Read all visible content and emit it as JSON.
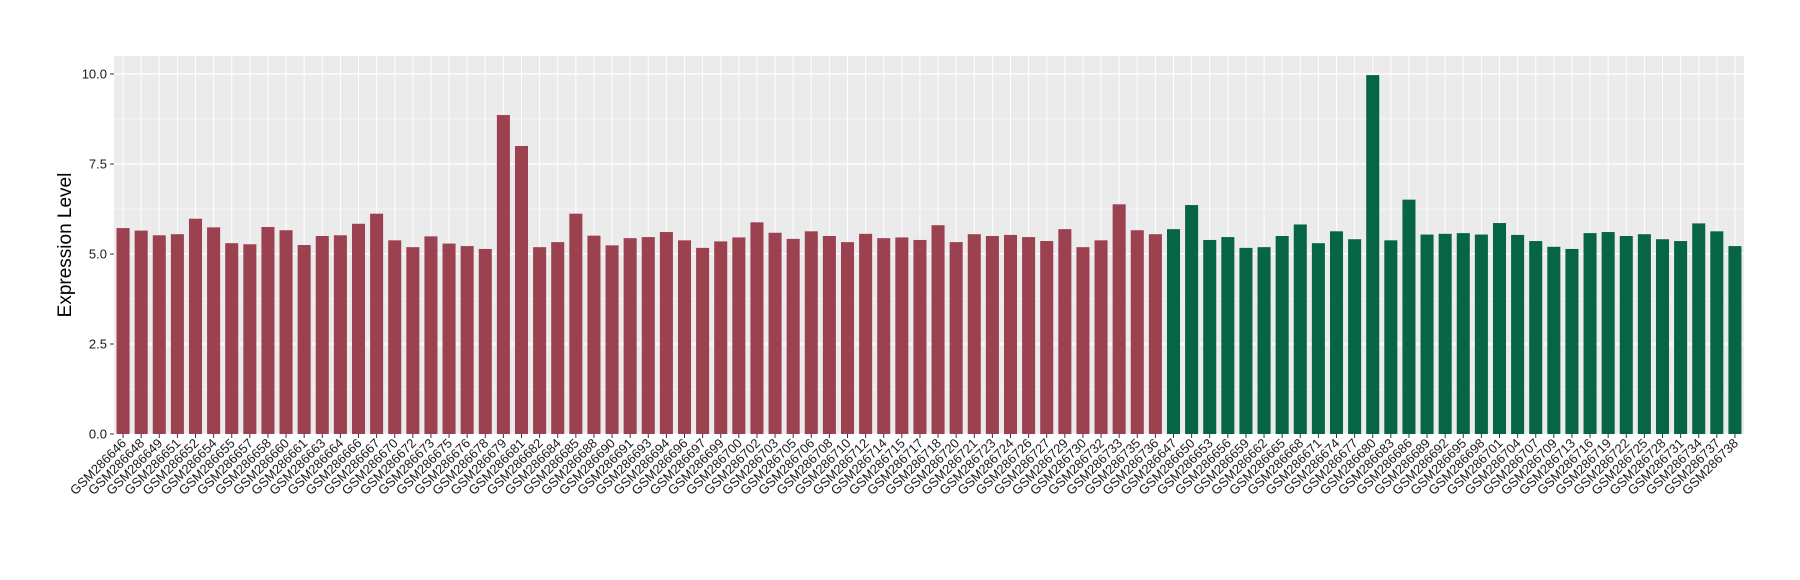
{
  "chart_data": {
    "type": "bar",
    "title": "",
    "xlabel": "",
    "ylabel": "Expression Level",
    "ylim": [
      0,
      10.5
    ],
    "yticks": [
      "0.0",
      "2.5",
      "5.0",
      "7.5",
      "10.0"
    ],
    "grid": true,
    "legend": "none",
    "colors": {
      "group1": "#9B4150",
      "group2": "#056544",
      "panel_bg": "#EBEBEB",
      "grid": "#FFFFFF"
    },
    "bars": [
      {
        "label": "GSM286646",
        "value": 5.72,
        "group": "group1"
      },
      {
        "label": "GSM286648",
        "value": 5.65,
        "group": "group1"
      },
      {
        "label": "GSM286649",
        "value": 5.52,
        "group": "group1"
      },
      {
        "label": "GSM286651",
        "value": 5.55,
        "group": "group1"
      },
      {
        "label": "GSM286652",
        "value": 5.98,
        "group": "group1"
      },
      {
        "label": "GSM286654",
        "value": 5.74,
        "group": "group1"
      },
      {
        "label": "GSM286655",
        "value": 5.3,
        "group": "group1"
      },
      {
        "label": "GSM286657",
        "value": 5.27,
        "group": "group1"
      },
      {
        "label": "GSM286658",
        "value": 5.75,
        "group": "group1"
      },
      {
        "label": "GSM286660",
        "value": 5.66,
        "group": "group1"
      },
      {
        "label": "GSM286661",
        "value": 5.25,
        "group": "group1"
      },
      {
        "label": "GSM286663",
        "value": 5.5,
        "group": "group1"
      },
      {
        "label": "GSM286664",
        "value": 5.52,
        "group": "group1"
      },
      {
        "label": "GSM286666",
        "value": 5.84,
        "group": "group1"
      },
      {
        "label": "GSM286667",
        "value": 6.12,
        "group": "group1"
      },
      {
        "label": "GSM286670",
        "value": 5.38,
        "group": "group1"
      },
      {
        "label": "GSM286672",
        "value": 5.19,
        "group": "group1"
      },
      {
        "label": "GSM286673",
        "value": 5.49,
        "group": "group1"
      },
      {
        "label": "GSM286675",
        "value": 5.29,
        "group": "group1"
      },
      {
        "label": "GSM286676",
        "value": 5.22,
        "group": "group1"
      },
      {
        "label": "GSM286678",
        "value": 5.14,
        "group": "group1"
      },
      {
        "label": "GSM286679",
        "value": 8.86,
        "group": "group1"
      },
      {
        "label": "GSM286681",
        "value": 8.0,
        "group": "group1"
      },
      {
        "label": "GSM286682",
        "value": 5.19,
        "group": "group1"
      },
      {
        "label": "GSM286684",
        "value": 5.33,
        "group": "group1"
      },
      {
        "label": "GSM286685",
        "value": 6.12,
        "group": "group1"
      },
      {
        "label": "GSM286688",
        "value": 5.51,
        "group": "group1"
      },
      {
        "label": "GSM286690",
        "value": 5.24,
        "group": "group1"
      },
      {
        "label": "GSM286691",
        "value": 5.44,
        "group": "group1"
      },
      {
        "label": "GSM286693",
        "value": 5.47,
        "group": "group1"
      },
      {
        "label": "GSM286694",
        "value": 5.61,
        "group": "group1"
      },
      {
        "label": "GSM286696",
        "value": 5.38,
        "group": "group1"
      },
      {
        "label": "GSM286697",
        "value": 5.17,
        "group": "group1"
      },
      {
        "label": "GSM286699",
        "value": 5.35,
        "group": "group1"
      },
      {
        "label": "GSM286700",
        "value": 5.46,
        "group": "group1"
      },
      {
        "label": "GSM286702",
        "value": 5.88,
        "group": "group1"
      },
      {
        "label": "GSM286703",
        "value": 5.59,
        "group": "group1"
      },
      {
        "label": "GSM286705",
        "value": 5.42,
        "group": "group1"
      },
      {
        "label": "GSM286706",
        "value": 5.63,
        "group": "group1"
      },
      {
        "label": "GSM286708",
        "value": 5.5,
        "group": "group1"
      },
      {
        "label": "GSM286710",
        "value": 5.33,
        "group": "group1"
      },
      {
        "label": "GSM286712",
        "value": 5.56,
        "group": "group1"
      },
      {
        "label": "GSM286714",
        "value": 5.44,
        "group": "group1"
      },
      {
        "label": "GSM286715",
        "value": 5.46,
        "group": "group1"
      },
      {
        "label": "GSM286717",
        "value": 5.39,
        "group": "group1"
      },
      {
        "label": "GSM286718",
        "value": 5.8,
        "group": "group1"
      },
      {
        "label": "GSM286720",
        "value": 5.33,
        "group": "group1"
      },
      {
        "label": "GSM286721",
        "value": 5.55,
        "group": "group1"
      },
      {
        "label": "GSM286723",
        "value": 5.5,
        "group": "group1"
      },
      {
        "label": "GSM286724",
        "value": 5.53,
        "group": "group1"
      },
      {
        "label": "GSM286726",
        "value": 5.47,
        "group": "group1"
      },
      {
        "label": "GSM286727",
        "value": 5.36,
        "group": "group1"
      },
      {
        "label": "GSM286729",
        "value": 5.69,
        "group": "group1"
      },
      {
        "label": "GSM286730",
        "value": 5.19,
        "group": "group1"
      },
      {
        "label": "GSM286732",
        "value": 5.38,
        "group": "group1"
      },
      {
        "label": "GSM286733",
        "value": 6.38,
        "group": "group1"
      },
      {
        "label": "GSM286735",
        "value": 5.66,
        "group": "group1"
      },
      {
        "label": "GSM286736",
        "value": 5.55,
        "group": "group1"
      },
      {
        "label": "GSM286647",
        "value": 5.69,
        "group": "group2"
      },
      {
        "label": "GSM286650",
        "value": 6.36,
        "group": "group2"
      },
      {
        "label": "GSM286653",
        "value": 5.39,
        "group": "group2"
      },
      {
        "label": "GSM286656",
        "value": 5.47,
        "group": "group2"
      },
      {
        "label": "GSM286659",
        "value": 5.17,
        "group": "group2"
      },
      {
        "label": "GSM286662",
        "value": 5.19,
        "group": "group2"
      },
      {
        "label": "GSM286665",
        "value": 5.5,
        "group": "group2"
      },
      {
        "label": "GSM286668",
        "value": 5.82,
        "group": "group2"
      },
      {
        "label": "GSM286671",
        "value": 5.3,
        "group": "group2"
      },
      {
        "label": "GSM286674",
        "value": 5.63,
        "group": "group2"
      },
      {
        "label": "GSM286677",
        "value": 5.41,
        "group": "group2"
      },
      {
        "label": "GSM286680",
        "value": 9.97,
        "group": "group2"
      },
      {
        "label": "GSM286683",
        "value": 5.38,
        "group": "group2"
      },
      {
        "label": "GSM286686",
        "value": 6.51,
        "group": "group2"
      },
      {
        "label": "GSM286689",
        "value": 5.54,
        "group": "group2"
      },
      {
        "label": "GSM286692",
        "value": 5.56,
        "group": "group2"
      },
      {
        "label": "GSM286695",
        "value": 5.58,
        "group": "group2"
      },
      {
        "label": "GSM286698",
        "value": 5.54,
        "group": "group2"
      },
      {
        "label": "GSM286701",
        "value": 5.86,
        "group": "group2"
      },
      {
        "label": "GSM286704",
        "value": 5.53,
        "group": "group2"
      },
      {
        "label": "GSM286707",
        "value": 5.36,
        "group": "group2"
      },
      {
        "label": "GSM286709",
        "value": 5.2,
        "group": "group2"
      },
      {
        "label": "GSM286713",
        "value": 5.14,
        "group": "group2"
      },
      {
        "label": "GSM286716",
        "value": 5.58,
        "group": "group2"
      },
      {
        "label": "GSM286719",
        "value": 5.61,
        "group": "group2"
      },
      {
        "label": "GSM286722",
        "value": 5.5,
        "group": "group2"
      },
      {
        "label": "GSM286725",
        "value": 5.55,
        "group": "group2"
      },
      {
        "label": "GSM286728",
        "value": 5.41,
        "group": "group2"
      },
      {
        "label": "GSM286731",
        "value": 5.36,
        "group": "group2"
      },
      {
        "label": "GSM286734",
        "value": 5.85,
        "group": "group2"
      },
      {
        "label": "GSM286737",
        "value": 5.63,
        "group": "group2"
      },
      {
        "label": "GSM286738",
        "value": 5.22,
        "group": "group2"
      }
    ]
  }
}
